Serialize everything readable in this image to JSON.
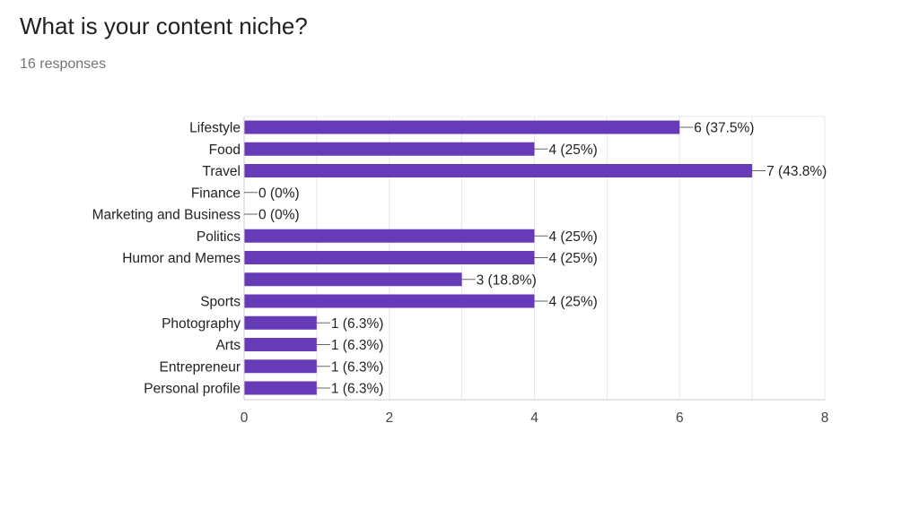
{
  "question": {
    "title": "What is your content niche?",
    "responses": "16 responses"
  },
  "colors": {
    "bar": "#673ab7",
    "grid": "#e8e8e8",
    "axis": "#cccccc",
    "connector": "#666666"
  },
  "chart_data": {
    "type": "bar",
    "orientation": "horizontal",
    "categories": [
      "Lifestyle",
      "Food",
      "Travel",
      "Finance",
      "Marketing and Business",
      "Politics",
      "Humor and Memes",
      "",
      "Sports",
      "Photography",
      "Arts",
      "Entrepreneur",
      "Personal profile"
    ],
    "values": [
      6,
      4,
      7,
      0,
      0,
      4,
      4,
      3,
      4,
      1,
      1,
      1,
      1
    ],
    "data_labels": [
      "6 (37.5%)",
      "4 (25%)",
      "7 (43.8%)",
      "0 (0%)",
      "0 (0%)",
      "4 (25%)",
      "4 (25%)",
      "3 (18.8%)",
      "4 (25%)",
      "1 (6.3%)",
      "1 (6.3%)",
      "1 (6.3%)",
      "1 (6.3%)"
    ],
    "xlim": [
      0,
      8
    ],
    "xticks": [
      0,
      2,
      4,
      6,
      8
    ],
    "grid": true,
    "legend": "none"
  }
}
